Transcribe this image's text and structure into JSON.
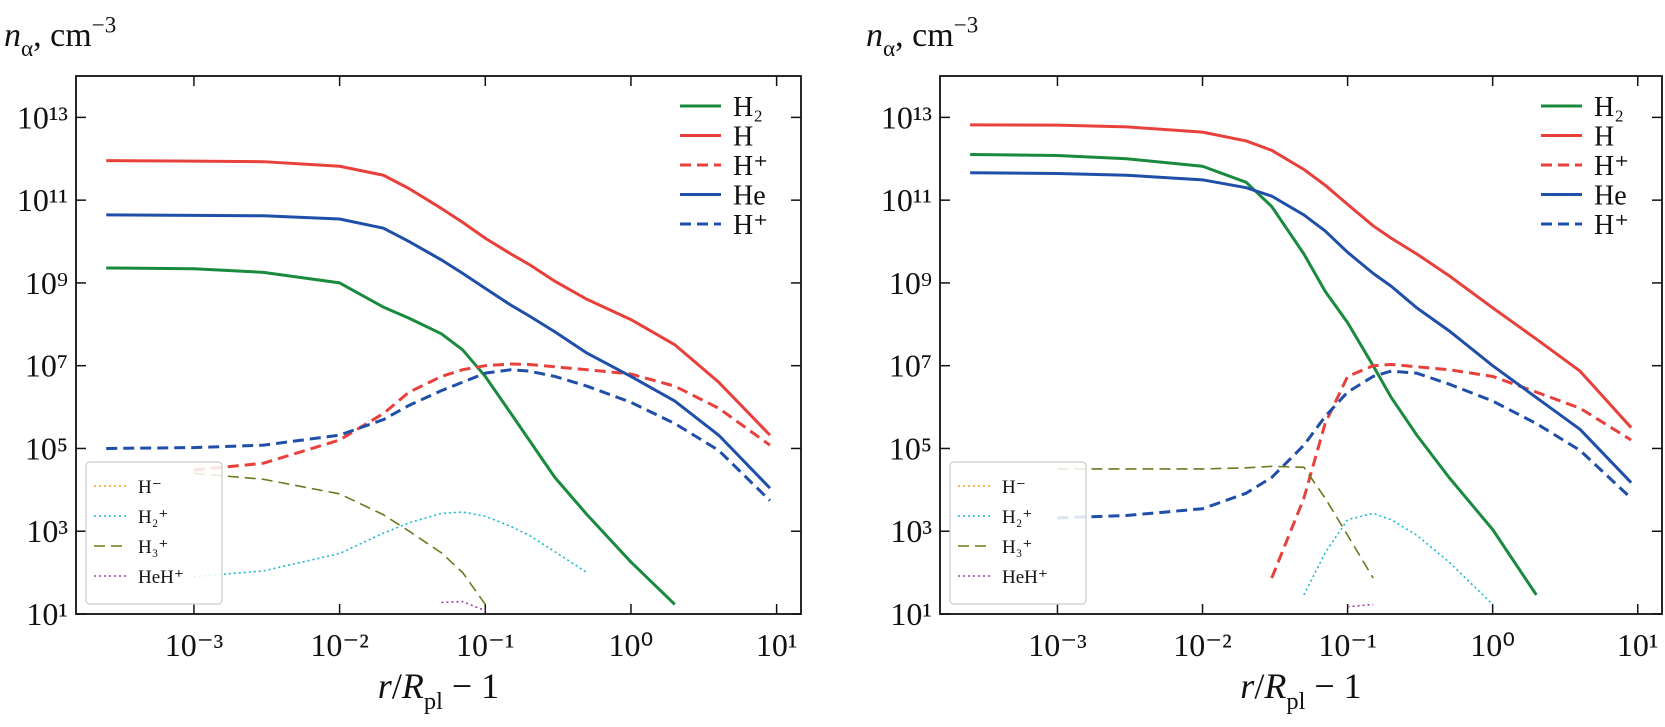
{
  "chart_data": [
    {
      "type": "line",
      "xscale": "log",
      "yscale": "log",
      "ylabel": [
        "n",
        "α",
        ", cm",
        "−3"
      ],
      "xlabel": [
        "r",
        "/",
        "R",
        "pl",
        " − 1"
      ],
      "xlim": [
        0.000155,
        14.7
      ],
      "ylim": [
        10,
        100000000000000.0
      ],
      "xticks": [
        {
          "value": 0.001,
          "label": "10⁻³"
        },
        {
          "value": 0.01,
          "label": "10⁻²"
        },
        {
          "value": 0.1,
          "label": "10⁻¹"
        },
        {
          "value": 1,
          "label": "10⁰"
        },
        {
          "value": 10,
          "label": "10¹"
        }
      ],
      "yticks": [
        {
          "value": 10,
          "label": "10¹"
        },
        {
          "value": 1000,
          "label": "10³"
        },
        {
          "value": 100000,
          "label": "10⁵"
        },
        {
          "value": 10000000,
          "label": "10⁷"
        },
        {
          "value": 1000000000,
          "label": "10⁹"
        },
        {
          "value": 100000000000,
          "label": "10¹¹"
        },
        {
          "value": 10000000000000,
          "label": "10¹³"
        }
      ],
      "x": [
        0.00025,
        0.001,
        0.003,
        0.01,
        0.02,
        0.03,
        0.05,
        0.07,
        0.1,
        0.15,
        0.2,
        0.3,
        0.5,
        1,
        2,
        4,
        9
      ],
      "series": [
        {
          "name": "H₂",
          "color": "#1a8a3e",
          "style": "solid",
          "width": 3,
          "legend": "upper right",
          "values": [
            2300000000.0,
            2200000000.0,
            1800000000.0,
            1000000000.0,
            260000000.0,
            140000000.0,
            59000000.0,
            24000000.0,
            5500000.0,
            700000.0,
            160000.0,
            20000.0,
            2500,
            180,
            17,
            null,
            null
          ]
        },
        {
          "name": "H",
          "color": "#e8413c",
          "style": "solid",
          "width": 3,
          "legend": "upper right",
          "values": [
            900000000000.0,
            880000000000.0,
            850000000000.0,
            660000000000.0,
            400000000000.0,
            190000000000.0,
            63000000000.0,
            29000000000.0,
            12000000000.0,
            5000000000.0,
            2800000000.0,
            1100000000.0,
            400000000.0,
            130000000.0,
            32000000.0,
            4000000.0,
            210000.0
          ]
        },
        {
          "name": "H⁺",
          "color": "#e8413c",
          "style": "dashed",
          "width": 3,
          "legend": "upper right",
          "values": [
            null,
            30000.0,
            44000.0,
            160000.0,
            700000.0,
            2300000.0,
            5500000.0,
            8000000.0,
            10000000.0,
            11000000.0,
            10700000.0,
            9400000.0,
            8000000.0,
            6300000.0,
            3200000.0,
            940000.0,
            120000.0
          ]
        },
        {
          "name": "He",
          "color": "#1f4fa8",
          "style": "solid",
          "width": 3,
          "legend": "upper right",
          "values": [
            44000000000.0,
            43000000000.0,
            42000000000.0,
            35000000000.0,
            21000000000.0,
            10000000000.0,
            3600000000.0,
            1700000000.0,
            740000000.0,
            290000000.0,
            160000000.0,
            66000000.0,
            20000000.0,
            5500000.0,
            1400000.0,
            210000.0,
            11000.0
          ]
        },
        {
          "name": "H⁺",
          "color": "#1f4fa8",
          "style": "dashed",
          "width": 3,
          "legend": "upper right",
          "values": [
            100000.0,
            105000.0,
            120000.0,
            210000.0,
            500000.0,
            1100000.0,
            2500000.0,
            4000000.0,
            6600000.0,
            8000000.0,
            7400000.0,
            5500000.0,
            3200000.0,
            1300000.0,
            400000.0,
            90000.0,
            5500
          ]
        },
        {
          "name": "H⁻",
          "color": "#ff9a1a",
          "style": "dotted",
          "width": 1.6,
          "legend": "lower left",
          "values": [
            null,
            null,
            null,
            null,
            null,
            null,
            null,
            null,
            null,
            null,
            null,
            null,
            null,
            null,
            null,
            null,
            null
          ]
        },
        {
          "name": "H₂⁺",
          "color": "#1ab8d0",
          "style": "dotted",
          "width": 1.6,
          "legend": "lower left",
          "values": [
            null,
            80,
            110,
            290,
            900,
            1600,
            2700,
            2900,
            2300,
            1300,
            800,
            320,
            100,
            null,
            null,
            null,
            null
          ]
        },
        {
          "name": "H₃⁺",
          "color": "#6b7a1f",
          "style": "dashed",
          "width": 1.6,
          "legend": "lower left",
          "values": [
            null,
            25000,
            18000,
            8000,
            2500,
            1000,
            300,
            100,
            17,
            null,
            null,
            null,
            null,
            null,
            null,
            null,
            null
          ]
        },
        {
          "name": "HeH⁺",
          "color": "#a040a0",
          "style": "dotted",
          "width": 1.6,
          "legend": "lower left",
          "values": [
            null,
            null,
            null,
            null,
            null,
            null,
            19,
            20,
            12,
            null,
            null,
            null,
            null,
            null,
            null,
            null,
            null
          ]
        }
      ]
    },
    {
      "type": "line",
      "xscale": "log",
      "yscale": "log",
      "ylabel": [
        "n",
        "α",
        ", cm",
        "−3"
      ],
      "xlabel": [
        "r",
        "/",
        "R",
        "pl",
        " − 1"
      ],
      "xlim": [
        0.000155,
        14.7
      ],
      "ylim": [
        10,
        100000000000000.0
      ],
      "xticks": [
        {
          "value": 0.001,
          "label": "10⁻³"
        },
        {
          "value": 0.01,
          "label": "10⁻²"
        },
        {
          "value": 0.1,
          "label": "10⁻¹"
        },
        {
          "value": 1,
          "label": "10⁰"
        },
        {
          "value": 10,
          "label": "10¹"
        }
      ],
      "yticks": [
        {
          "value": 10,
          "label": "10¹"
        },
        {
          "value": 1000,
          "label": "10³"
        },
        {
          "value": 100000,
          "label": "10⁵"
        },
        {
          "value": 10000000,
          "label": "10⁷"
        },
        {
          "value": 1000000000,
          "label": "10⁹"
        },
        {
          "value": 100000000000,
          "label": "10¹¹"
        },
        {
          "value": 10000000000000,
          "label": "10¹³"
        }
      ],
      "x": [
        0.00025,
        0.001,
        0.003,
        0.01,
        0.02,
        0.03,
        0.05,
        0.07,
        0.1,
        0.15,
        0.2,
        0.3,
        0.5,
        1,
        2,
        4,
        9
      ],
      "series": [
        {
          "name": "H₂",
          "color": "#1a8a3e",
          "style": "solid",
          "width": 3,
          "legend": "upper right",
          "values": [
            1270000000000.0,
            1200000000000.0,
            1000000000000.0,
            660000000000.0,
            270000000000.0,
            70000000000.0,
            5000000000.0,
            630000000.0,
            110000000.0,
            10000000.0,
            1700000.0,
            210000.0,
            20000.0,
            1100,
            29,
            null,
            null
          ]
        },
        {
          "name": "H",
          "color": "#e8413c",
          "style": "solid",
          "width": 3,
          "legend": "upper right",
          "values": [
            6600000000000.0,
            6500000000000.0,
            5900000000000.0,
            4400000000000.0,
            2700000000000.0,
            1600000000000.0,
            550000000000.0,
            230000000000.0,
            79000000000.0,
            24000000000.0,
            12000000000.0,
            5000000000.0,
            1500000000.0,
            250000000.0,
            44000000.0,
            7400000.0,
            320000.0
          ]
        },
        {
          "name": "H⁺",
          "color": "#e8413c",
          "style": "dashed",
          "width": 3,
          "legend": "upper right",
          "values": [
            null,
            null,
            null,
            null,
            null,
            74,
            6300,
            400000.0,
            5500000.0,
            10000000.0,
            10700000.0,
            9400000.0,
            8000000.0,
            5500000.0,
            2300000.0,
            940000.0,
            160000.0
          ]
        },
        {
          "name": "He",
          "color": "#1f4fa8",
          "style": "solid",
          "width": 3,
          "legend": "upper right",
          "values": [
            460000000000.0,
            440000000000.0,
            400000000000.0,
            310000000000.0,
            200000000000.0,
            125000000000.0,
            44000000000.0,
            18000000000.0,
            5500000000.0,
            1700000000.0,
            830000000.0,
            250000000.0,
            70000000.0,
            10000000.0,
            1700000.0,
            290000.0,
            15000.0
          ]
        },
        {
          "name": "H⁺",
          "color": "#1f4fa8",
          "style": "dashed",
          "width": 3,
          "legend": "upper right",
          "values": [
            null,
            2100,
            2400,
            3500,
            8300,
            20000.0,
            120000.0,
            590000.0,
            2300000.0,
            5500000.0,
            7400000.0,
            6600000.0,
            3600000.0,
            1400000.0,
            400000.0,
            90000.0,
            6300
          ]
        },
        {
          "name": "H⁻",
          "color": "#ff9a1a",
          "style": "dotted",
          "width": 1.6,
          "legend": "lower left",
          "values": [
            null,
            null,
            null,
            null,
            null,
            null,
            null,
            null,
            null,
            null,
            null,
            null,
            null,
            null,
            null,
            null,
            null
          ]
        },
        {
          "name": "H₂⁺",
          "color": "#1ab8d0",
          "style": "dotted",
          "width": 1.6,
          "legend": "lower left",
          "values": [
            null,
            null,
            null,
            null,
            null,
            null,
            29,
            300,
            1900,
            2700,
            1900,
            800,
            180,
            17,
            null,
            null,
            null
          ]
        },
        {
          "name": "H₃⁺",
          "color": "#6b7a1f",
          "style": "dashed",
          "width": 1.6,
          "legend": "lower left",
          "values": [
            null,
            32000,
            32000,
            32000,
            34000,
            37000,
            35000,
            6300,
            800,
            74,
            null,
            null,
            null,
            null,
            null,
            null,
            null
          ]
        },
        {
          "name": "HeH⁺",
          "color": "#a040a0",
          "style": "dotted",
          "width": 1.6,
          "legend": "lower left",
          "values": [
            null,
            null,
            null,
            null,
            null,
            null,
            null,
            null,
            15,
            17,
            null,
            null,
            null,
            null,
            null,
            null,
            null
          ]
        }
      ]
    }
  ]
}
